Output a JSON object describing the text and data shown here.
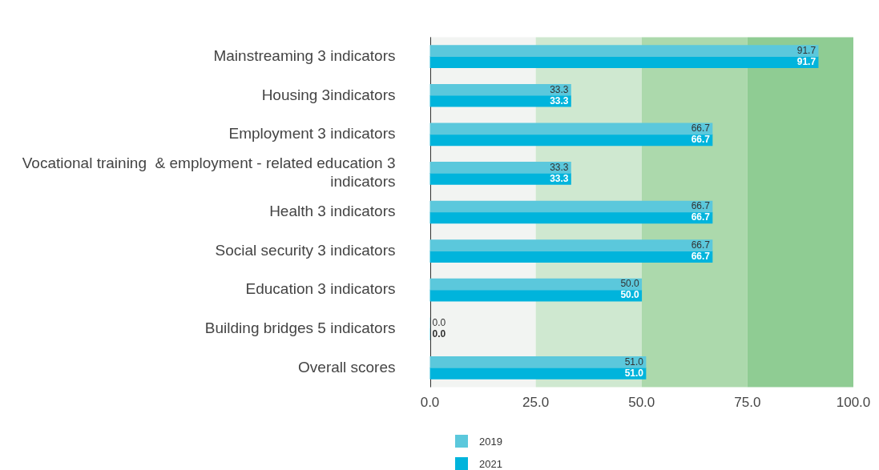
{
  "chart_data": {
    "type": "bar",
    "orientation": "horizontal",
    "categories": [
      "Mainstreaming 3 indicators",
      "Housing 3indicators",
      "Employment 3 indicators",
      "Vocational training  & employment - related education 3 indicators",
      "Health 3 indicators",
      "Social security 3 indicators",
      "Education 3 indicators",
      "Building bridges 5 indicators",
      "Overall scores"
    ],
    "series": [
      {
        "name": "2019",
        "color": "#5bc8dc",
        "values": [
          91.7,
          33.3,
          66.7,
          33.3,
          66.7,
          66.7,
          50.0,
          0.0,
          51.0
        ],
        "value_labels": [
          "91.7",
          "33.3",
          "66.7",
          "33.3",
          "66.7",
          "66.7",
          "50.0",
          "0.0",
          "51.0"
        ]
      },
      {
        "name": "2021",
        "color": "#00b4dc",
        "values": [
          91.7,
          33.3,
          66.7,
          33.3,
          66.7,
          66.7,
          50.0,
          0.0,
          51.0
        ],
        "value_labels": [
          "91.7",
          "33.3",
          "66.7",
          "33.3",
          "66.7",
          "66.7",
          "50.0",
          "0.0",
          "51.0"
        ]
      }
    ],
    "xlim": [
      0,
      100
    ],
    "xticks": [
      {
        "value": 0,
        "label": "0.0"
      },
      {
        "value": 25,
        "label": "25.0"
      },
      {
        "value": 50,
        "label": "50.0"
      },
      {
        "value": 75,
        "label": "75.0"
      },
      {
        "value": 100,
        "label": "100.0"
      }
    ],
    "bands": [
      {
        "axis": "x",
        "from": 0,
        "to": 25,
        "color": "#f2f4f2"
      },
      {
        "axis": "x",
        "from": 25,
        "to": 50,
        "color": "#cfe8d0"
      },
      {
        "axis": "x",
        "from": 50,
        "to": 75,
        "color": "#acd9ac"
      },
      {
        "axis": "x",
        "from": 75,
        "to": 100,
        "color": "#8fcc93"
      }
    ],
    "grid": false,
    "legend": "bottom left"
  }
}
